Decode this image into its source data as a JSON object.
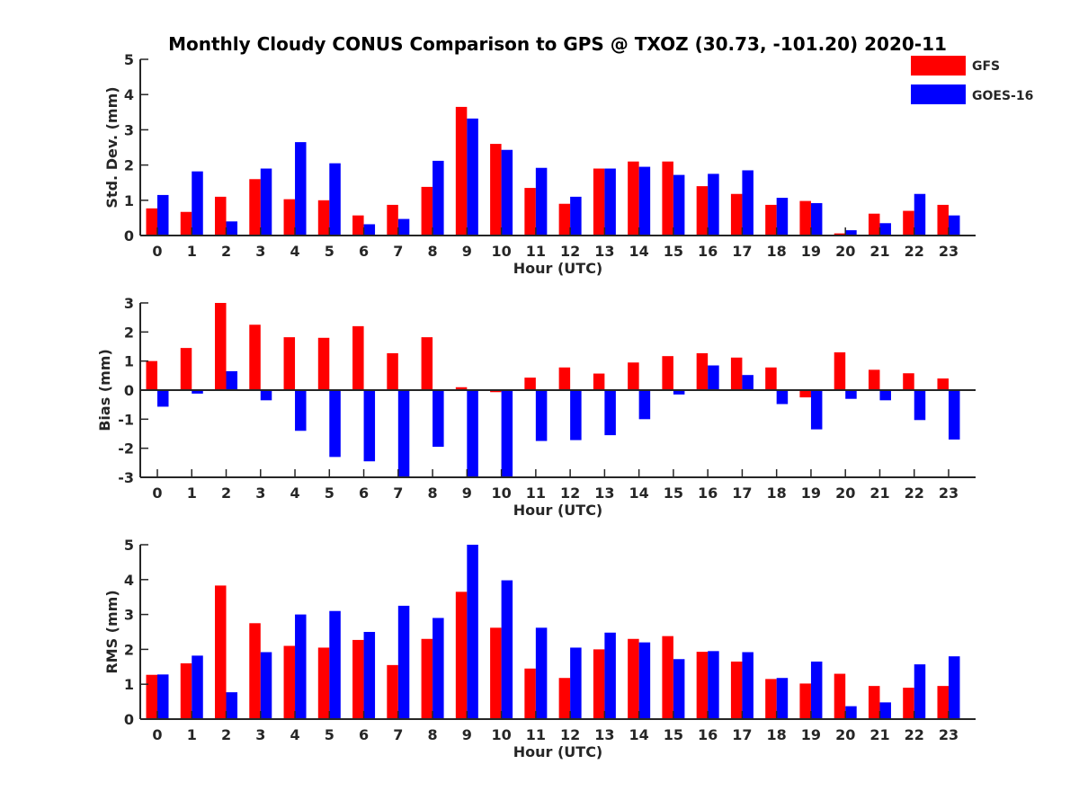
{
  "figure": {
    "title": "Monthly Cloudy CONUS Comparison to GPS @ TXOZ (30.73, -101.20) 2020-11"
  },
  "legend": {
    "items": [
      {
        "label": "GFS",
        "color": "#ff0000"
      },
      {
        "label": "GOES-16",
        "color": "#0000ff"
      }
    ],
    "placement": "top-right"
  },
  "chart_data": [
    {
      "type": "bar",
      "ylabel": "Std. Dev. (mm)",
      "xlabel": "Hour (UTC)",
      "categories": [
        "0",
        "1",
        "2",
        "3",
        "4",
        "5",
        "6",
        "7",
        "8",
        "9",
        "10",
        "11",
        "12",
        "13",
        "14",
        "15",
        "16",
        "17",
        "18",
        "19",
        "20",
        "21",
        "22",
        "23"
      ],
      "ylim": [
        0,
        5
      ],
      "yticks": [
        0,
        1,
        2,
        3,
        4,
        5
      ],
      "series": [
        {
          "name": "GFS",
          "color": "#ff0000",
          "values": [
            0.77,
            0.67,
            1.1,
            1.6,
            1.03,
            1.0,
            0.57,
            0.87,
            1.38,
            3.65,
            2.6,
            1.35,
            0.9,
            1.9,
            2.1,
            2.1,
            1.4,
            1.18,
            0.87,
            0.98,
            0.06,
            0.62,
            0.7,
            0.87
          ]
        },
        {
          "name": "GOES-16",
          "color": "#0000ff",
          "values": [
            1.15,
            1.82,
            0.4,
            1.9,
            2.65,
            2.05,
            0.32,
            0.47,
            2.12,
            3.32,
            2.43,
            1.92,
            1.1,
            1.9,
            1.95,
            1.72,
            1.75,
            1.85,
            1.07,
            0.92,
            0.15,
            0.35,
            1.18,
            0.57
          ]
        }
      ]
    },
    {
      "type": "bar",
      "ylabel": "Bias (mm)",
      "xlabel": "Hour (UTC)",
      "categories": [
        "0",
        "1",
        "2",
        "3",
        "4",
        "5",
        "6",
        "7",
        "8",
        "9",
        "10",
        "11",
        "12",
        "13",
        "14",
        "15",
        "16",
        "17",
        "18",
        "19",
        "20",
        "21",
        "22",
        "23"
      ],
      "ylim": [
        -3,
        3
      ],
      "yticks": [
        -3,
        -2,
        -1,
        0,
        1,
        2,
        3
      ],
      "series": [
        {
          "name": "GFS",
          "color": "#ff0000",
          "values": [
            1.0,
            1.45,
            3.0,
            2.25,
            1.82,
            1.8,
            2.2,
            1.27,
            1.82,
            0.1,
            -0.07,
            0.43,
            0.78,
            0.57,
            0.95,
            1.17,
            1.27,
            1.12,
            0.78,
            -0.25,
            1.3,
            0.7,
            0.58,
            0.4
          ]
        },
        {
          "name": "GOES-16",
          "color": "#0000ff",
          "values": [
            -0.57,
            -0.12,
            0.65,
            -0.35,
            -1.4,
            -2.3,
            -2.45,
            -3.0,
            -1.95,
            -3.0,
            -3.0,
            -1.75,
            -1.72,
            -1.55,
            -1.0,
            -0.15,
            0.85,
            0.52,
            -0.48,
            -1.35,
            -0.3,
            -0.35,
            -1.03,
            -1.7
          ]
        }
      ]
    },
    {
      "type": "bar",
      "ylabel": "RMS (mm)",
      "xlabel": "Hour (UTC)",
      "categories": [
        "0",
        "1",
        "2",
        "3",
        "4",
        "5",
        "6",
        "7",
        "8",
        "9",
        "10",
        "11",
        "12",
        "13",
        "14",
        "15",
        "16",
        "17",
        "18",
        "19",
        "20",
        "21",
        "22",
        "23"
      ],
      "ylim": [
        0,
        5
      ],
      "yticks": [
        0,
        1,
        2,
        3,
        4,
        5
      ],
      "series": [
        {
          "name": "GFS",
          "color": "#ff0000",
          "values": [
            1.27,
            1.6,
            3.83,
            2.75,
            2.1,
            2.05,
            2.27,
            1.55,
            2.3,
            3.65,
            2.62,
            1.45,
            1.18,
            2.0,
            2.3,
            2.38,
            1.93,
            1.65,
            1.15,
            1.02,
            1.3,
            0.95,
            0.9,
            0.95
          ]
        },
        {
          "name": "GOES-16",
          "color": "#0000ff",
          "values": [
            1.28,
            1.82,
            0.77,
            1.92,
            3.0,
            3.1,
            2.5,
            3.25,
            2.9,
            5.0,
            3.98,
            2.62,
            2.05,
            2.48,
            2.2,
            1.72,
            1.95,
            1.92,
            1.18,
            1.65,
            0.37,
            0.48,
            1.57,
            1.8
          ]
        }
      ]
    }
  ]
}
